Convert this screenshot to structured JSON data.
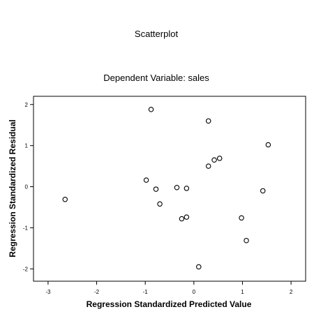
{
  "chart_data": {
    "type": "scatter",
    "title": "Scatterplot",
    "subtitle": "Dependent Variable: sales",
    "xlabel": "Regression Standardized Predicted Value",
    "ylabel": "Regression Standardized Residual",
    "xlim": [
      -3.3,
      2.3
    ],
    "ylim": [
      -2.3,
      2.2
    ],
    "xticks": [
      -3,
      -2,
      -1,
      0,
      1,
      2
    ],
    "yticks": [
      -2,
      -1,
      0,
      1,
      2
    ],
    "grid": false,
    "legend": "none",
    "points": [
      {
        "x": -2.65,
        "y": -0.31
      },
      {
        "x": -0.88,
        "y": 1.88
      },
      {
        "x": -0.98,
        "y": 0.16
      },
      {
        "x": -0.78,
        "y": -0.06
      },
      {
        "x": -0.7,
        "y": -0.42
      },
      {
        "x": -0.35,
        "y": -0.02
      },
      {
        "x": -0.25,
        "y": -0.78
      },
      {
        "x": -0.15,
        "y": -0.04
      },
      {
        "x": -0.15,
        "y": -0.74
      },
      {
        "x": 0.1,
        "y": -1.95
      },
      {
        "x": 0.3,
        "y": 1.6
      },
      {
        "x": 0.3,
        "y": 0.5
      },
      {
        "x": 0.42,
        "y": 0.65
      },
      {
        "x": 0.53,
        "y": 0.69
      },
      {
        "x": 0.98,
        "y": -0.76
      },
      {
        "x": 1.08,
        "y": -1.31
      },
      {
        "x": 1.42,
        "y": -0.1
      },
      {
        "x": 1.53,
        "y": 1.02
      }
    ]
  }
}
